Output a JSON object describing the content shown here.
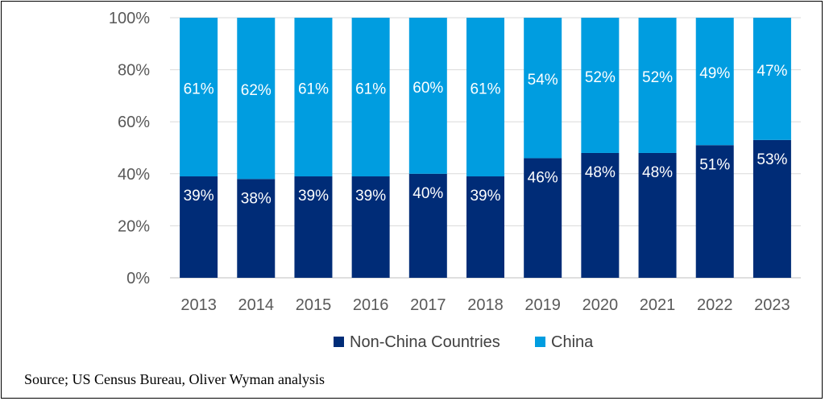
{
  "chart_data": {
    "type": "bar",
    "stacked": true,
    "categories": [
      "2013",
      "2014",
      "2015",
      "2016",
      "2017",
      "2018",
      "2019",
      "2020",
      "2021",
      "2022",
      "2023"
    ],
    "series": [
      {
        "name": "Non-China Countries",
        "color": "#002c77",
        "values": [
          39,
          38,
          39,
          39,
          40,
          39,
          46,
          48,
          48,
          51,
          53
        ],
        "labels": [
          "39%",
          "38%",
          "39%",
          "39%",
          "40%",
          "39%",
          "46%",
          "48%",
          "48%",
          "51%",
          "53%"
        ]
      },
      {
        "name": "China",
        "color": "#009de0",
        "values": [
          61,
          62,
          61,
          61,
          60,
          61,
          54,
          52,
          52,
          49,
          47
        ],
        "labels": [
          "61%",
          "62%",
          "61%",
          "61%",
          "60%",
          "61%",
          "54%",
          "52%",
          "52%",
          "49%",
          "47%"
        ]
      }
    ],
    "ylim": [
      0,
      100
    ],
    "yticks": [
      "0%",
      "20%",
      "40%",
      "60%",
      "80%",
      "100%"
    ],
    "legend": "bottom-center",
    "grid": true
  },
  "source_text": "Source; US Census Bureau, Oliver Wyman analysis"
}
